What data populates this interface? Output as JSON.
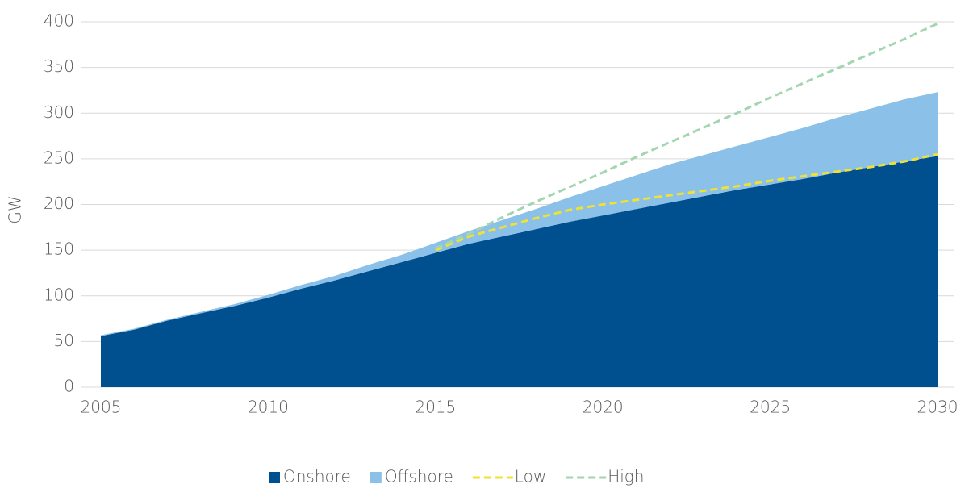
{
  "chart_data": {
    "type": "stacked_area",
    "y_label": "GW",
    "x": [
      2005,
      2006,
      2007,
      2008,
      2009,
      2010,
      2011,
      2012,
      2013,
      2014,
      2015,
      2016,
      2017,
      2018,
      2019,
      2020,
      2021,
      2022,
      2023,
      2024,
      2025,
      2026,
      2027,
      2028,
      2029,
      2030
    ],
    "series": [
      {
        "name": "Onshore",
        "color": "#00508f",
        "kind": "area",
        "values": [
          56,
          63,
          73,
          81,
          89,
          98,
          108,
          117,
          127,
          137,
          147,
          157,
          165,
          173,
          181,
          188,
          195,
          202,
          209,
          216,
          222,
          228,
          235,
          241,
          247,
          253
        ]
      },
      {
        "name": "Offshore",
        "color": "#8bc1e8",
        "kind": "area",
        "values": [
          1,
          1,
          1,
          1.5,
          2,
          3,
          4,
          5,
          7,
          8,
          11,
          14,
          18,
          22,
          27,
          32,
          37,
          42,
          45,
          48,
          52,
          56,
          60,
          64,
          68,
          70
        ]
      },
      {
        "name": "Low",
        "color": "#f0e132",
        "kind": "dashed_line",
        "values": [
          null,
          null,
          null,
          null,
          null,
          null,
          null,
          null,
          null,
          null,
          150,
          165,
          175,
          185,
          194,
          200,
          205,
          210,
          215,
          220,
          226,
          231,
          236,
          241,
          247,
          255
        ]
      },
      {
        "name": "High",
        "color": "#a3d5b0",
        "kind": "dashed_line",
        "values": [
          null,
          null,
          null,
          null,
          null,
          null,
          null,
          null,
          null,
          null,
          152,
          168,
          186,
          203,
          219,
          235,
          252,
          268,
          284,
          300,
          317,
          333,
          349,
          365,
          381,
          398
        ]
      }
    ],
    "xlim": [
      2005,
      2030
    ],
    "xticks": [
      2005,
      2010,
      2015,
      2020,
      2025,
      2030
    ],
    "ylim": [
      0,
      400
    ],
    "yticks": [
      0,
      50,
      100,
      150,
      200,
      250,
      300,
      350,
      400
    ],
    "grid": true,
    "legend": "bottom"
  }
}
